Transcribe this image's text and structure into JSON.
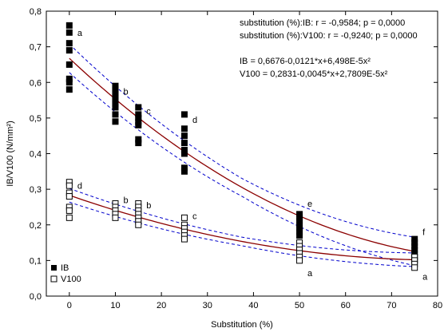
{
  "chart_data": {
    "type": "scatter",
    "xlabel": "Substitution (%)",
    "ylabel": "IB/V100 (N/mm²)",
    "xlim": [
      -5,
      80
    ],
    "ylim": [
      0,
      0.8
    ],
    "x_ticks": [
      0,
      10,
      20,
      30,
      40,
      50,
      60,
      70,
      80
    ],
    "y_ticks": [
      0.0,
      0.1,
      0.2,
      0.3,
      0.4,
      0.5,
      0.6,
      0.7,
      0.8
    ],
    "x_tick_labels": [
      "0",
      "10",
      "20",
      "30",
      "40",
      "50",
      "60",
      "70",
      "80"
    ],
    "y_tick_labels": [
      "0,0",
      "0,1",
      "0,2",
      "0,3",
      "0,4",
      "0,5",
      "0,6",
      "0,7",
      "0,8"
    ],
    "grid": false,
    "legend_position": "bottom-left",
    "series": [
      {
        "name": "IB",
        "marker": "filled-square",
        "color": "#000000",
        "points": [
          {
            "x": 0,
            "y": 0.76
          },
          {
            "x": 0,
            "y": 0.74
          },
          {
            "x": 0,
            "y": 0.71
          },
          {
            "x": 0,
            "y": 0.69
          },
          {
            "x": 0,
            "y": 0.65
          },
          {
            "x": 0,
            "y": 0.61
          },
          {
            "x": 0,
            "y": 0.6
          },
          {
            "x": 0,
            "y": 0.58
          },
          {
            "x": 10,
            "y": 0.59
          },
          {
            "x": 10,
            "y": 0.58
          },
          {
            "x": 10,
            "y": 0.57
          },
          {
            "x": 10,
            "y": 0.56
          },
          {
            "x": 10,
            "y": 0.55
          },
          {
            "x": 10,
            "y": 0.54
          },
          {
            "x": 10,
            "y": 0.53
          },
          {
            "x": 10,
            "y": 0.51
          },
          {
            "x": 10,
            "y": 0.49
          },
          {
            "x": 15,
            "y": 0.53
          },
          {
            "x": 15,
            "y": 0.51
          },
          {
            "x": 15,
            "y": 0.5
          },
          {
            "x": 15,
            "y": 0.49
          },
          {
            "x": 15,
            "y": 0.48
          },
          {
            "x": 15,
            "y": 0.44
          },
          {
            "x": 15,
            "y": 0.43
          },
          {
            "x": 25,
            "y": 0.51
          },
          {
            "x": 25,
            "y": 0.47
          },
          {
            "x": 25,
            "y": 0.45
          },
          {
            "x": 25,
            "y": 0.43
          },
          {
            "x": 25,
            "y": 0.41
          },
          {
            "x": 25,
            "y": 0.4
          },
          {
            "x": 25,
            "y": 0.36
          },
          {
            "x": 25,
            "y": 0.35
          },
          {
            "x": 50,
            "y": 0.23
          },
          {
            "x": 50,
            "y": 0.22
          },
          {
            "x": 50,
            "y": 0.21
          },
          {
            "x": 50,
            "y": 0.2
          },
          {
            "x": 50,
            "y": 0.19
          },
          {
            "x": 50,
            "y": 0.18
          },
          {
            "x": 50,
            "y": 0.17
          },
          {
            "x": 75,
            "y": 0.16
          },
          {
            "x": 75,
            "y": 0.15
          },
          {
            "x": 75,
            "y": 0.14
          },
          {
            "x": 75,
            "y": 0.13
          },
          {
            "x": 75,
            "y": 0.12
          },
          {
            "x": 75,
            "y": 0.11
          },
          {
            "x": 75,
            "y": 0.1
          }
        ],
        "fit": {
          "a": 0.6676,
          "b": -0.0121,
          "c": 6.498e-05
        },
        "fit_color": "#8b0000",
        "ci_half_width": 0.025,
        "ci_color": "#0000cc"
      },
      {
        "name": "V100",
        "marker": "open-square",
        "color": "#000000",
        "points": [
          {
            "x": 0,
            "y": 0.32
          },
          {
            "x": 0,
            "y": 0.31
          },
          {
            "x": 0,
            "y": 0.29
          },
          {
            "x": 0,
            "y": 0.28
          },
          {
            "x": 0,
            "y": 0.25
          },
          {
            "x": 0,
            "y": 0.24
          },
          {
            "x": 0,
            "y": 0.22
          },
          {
            "x": 10,
            "y": 0.26
          },
          {
            "x": 10,
            "y": 0.25
          },
          {
            "x": 10,
            "y": 0.24
          },
          {
            "x": 10,
            "y": 0.23
          },
          {
            "x": 10,
            "y": 0.22
          },
          {
            "x": 15,
            "y": 0.26
          },
          {
            "x": 15,
            "y": 0.25
          },
          {
            "x": 15,
            "y": 0.24
          },
          {
            "x": 15,
            "y": 0.23
          },
          {
            "x": 15,
            "y": 0.22
          },
          {
            "x": 15,
            "y": 0.21
          },
          {
            "x": 15,
            "y": 0.2
          },
          {
            "x": 25,
            "y": 0.22
          },
          {
            "x": 25,
            "y": 0.2
          },
          {
            "x": 25,
            "y": 0.19
          },
          {
            "x": 25,
            "y": 0.18
          },
          {
            "x": 25,
            "y": 0.17
          },
          {
            "x": 25,
            "y": 0.16
          },
          {
            "x": 50,
            "y": 0.15
          },
          {
            "x": 50,
            "y": 0.14
          },
          {
            "x": 50,
            "y": 0.13
          },
          {
            "x": 50,
            "y": 0.12
          },
          {
            "x": 50,
            "y": 0.11
          },
          {
            "x": 50,
            "y": 0.1
          },
          {
            "x": 75,
            "y": 0.11
          },
          {
            "x": 75,
            "y": 0.1
          },
          {
            "x": 75,
            "y": 0.09
          },
          {
            "x": 75,
            "y": 0.08
          }
        ],
        "fit": {
          "a": 0.2831,
          "b": -0.0045,
          "c": 2.7809e-05
        },
        "fit_color": "#8b0000",
        "ci_half_width": 0.012,
        "ci_color": "#0000cc"
      }
    ],
    "group_labels": [
      {
        "series": "IB",
        "x": 0,
        "y": 0.74,
        "text": "a"
      },
      {
        "series": "IB",
        "x": 10,
        "y": 0.575,
        "text": "b"
      },
      {
        "series": "IB",
        "x": 15,
        "y": 0.52,
        "text": "c"
      },
      {
        "series": "IB",
        "x": 25,
        "y": 0.495,
        "text": "d"
      },
      {
        "series": "IB",
        "x": 50,
        "y": 0.26,
        "text": "e"
      },
      {
        "series": "IB",
        "x": 75,
        "y": 0.18,
        "text": "f"
      },
      {
        "series": "V100",
        "x": 0,
        "y": 0.31,
        "text": "d"
      },
      {
        "series": "V100",
        "x": 10,
        "y": 0.27,
        "text": "b"
      },
      {
        "series": "V100",
        "x": 15,
        "y": 0.255,
        "text": "b"
      },
      {
        "series": "V100",
        "x": 25,
        "y": 0.225,
        "text": "c"
      },
      {
        "series": "V100",
        "x": 50,
        "y": 0.065,
        "text": "a"
      },
      {
        "series": "V100",
        "x": 75,
        "y": 0.055,
        "text": "a"
      }
    ],
    "annotations": {
      "corr_ib": "substitution (%):IB:  r = -0,9584; p = 0,0000",
      "corr_v100": "substitution (%):V100:  r = -0,9240; p = 0,0000",
      "eq_ib": "IB = 0,6676-0,0121*x+6,498E-5x²",
      "eq_v100": "V100 = 0,2831-0,0045*x+2,7809E-5x²"
    }
  }
}
